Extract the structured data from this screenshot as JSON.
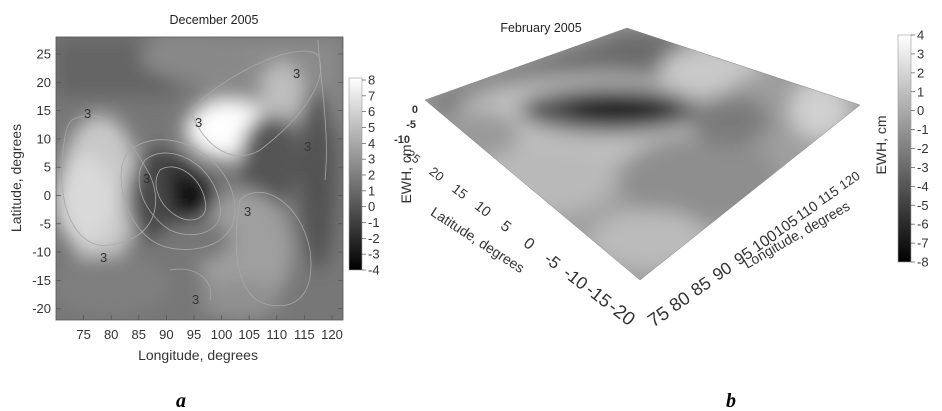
{
  "chart_data": [
    {
      "type": "heatmap",
      "panel_label": "a",
      "title": "December 2005",
      "xlabel": "Longitude, degrees",
      "ylabel": "Latitude, degrees",
      "xlim": [
        70,
        122
      ],
      "ylim": [
        -22,
        28
      ],
      "x_ticks": [
        "75",
        "80",
        "85",
        "90",
        "95",
        "100",
        "105",
        "110",
        "115",
        "120"
      ],
      "y_ticks": [
        "25",
        "20",
        "15",
        "10",
        "5",
        "0",
        "-5",
        "-10",
        "-15",
        "-20"
      ],
      "contour_labels": [
        "3",
        "3",
        "3",
        "3",
        "3",
        "3",
        "3",
        "3"
      ],
      "colorbar": {
        "label": "EWH, cm",
        "ticks": [
          "8",
          "7",
          "6",
          "5",
          "4",
          "3",
          "2",
          "1",
          "0",
          "-1",
          "-2",
          "-3",
          "-4"
        ],
        "range": [
          -4,
          8
        ],
        "colormap": "grayscale, white high, black low"
      }
    },
    {
      "type": "surface",
      "panel_label": "b",
      "title": "February 2005",
      "xlabel": "Longitude, degrees",
      "ylabel": "Latitude, degrees",
      "x_ticks": [
        "75",
        "80",
        "85",
        "90",
        "95",
        "100",
        "105",
        "110",
        "115",
        "120"
      ],
      "y_ticks": [
        "25",
        "20",
        "15",
        "10",
        "5",
        "0",
        "-5",
        "-10",
        "-15",
        "-20"
      ],
      "z_ticks": [
        "0",
        "-5",
        "-10"
      ],
      "colorbar": {
        "label": "EWH, cm",
        "ticks": [
          "4",
          "3",
          "2",
          "1",
          "0",
          "-1",
          "-2",
          "-3",
          "-4",
          "-5",
          "-6",
          "-7",
          "-8"
        ],
        "range": [
          -8,
          4
        ],
        "colormap": "grayscale, white high, black low"
      }
    }
  ]
}
